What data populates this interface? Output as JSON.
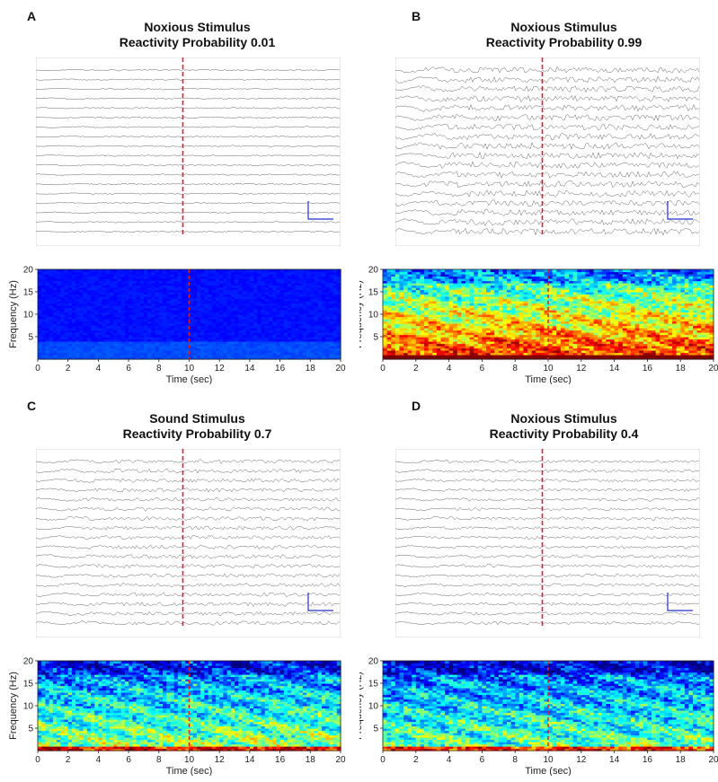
{
  "panels": [
    {
      "letter": "A",
      "title_line1": "Noxious Stimulus",
      "title_line2": "Reactivity Probability 0.01",
      "intensity": 0.05
    },
    {
      "letter": "B",
      "title_line1": "Noxious Stimulus",
      "title_line2": "Reactivity Probability 0.99",
      "intensity": 0.95
    },
    {
      "letter": "C",
      "title_line1": "Sound Stimulus",
      "title_line2": "Reactivity Probability 0.7",
      "intensity": 0.6
    },
    {
      "letter": "D",
      "title_line1": "Noxious Stimulus",
      "title_line2": "Reactivity Probability 0.4",
      "intensity": 0.55
    }
  ],
  "chart_data": [
    {
      "type": "heatmap",
      "panel": "A",
      "xlabel": "Time (sec)",
      "ylabel": "Frequency (Hz)",
      "xlim": [
        0,
        20
      ],
      "ylim": [
        0,
        20
      ],
      "x_ticks": [
        "0",
        "2",
        "4",
        "6",
        "8",
        "10",
        "12",
        "14",
        "16",
        "18",
        "20"
      ],
      "y_ticks": [
        "5",
        "10",
        "15",
        "20"
      ],
      "stimulus_marker_x": 10
    },
    {
      "type": "heatmap",
      "panel": "B",
      "xlabel": "Time (sec)",
      "ylabel": "Frequency (Hz)",
      "xlim": [
        0,
        20
      ],
      "ylim": [
        0,
        20
      ],
      "x_ticks": [
        "0",
        "2",
        "4",
        "6",
        "8",
        "10",
        "12",
        "14",
        "16",
        "18",
        "20"
      ],
      "y_ticks": [
        "5",
        "10",
        "15",
        "20"
      ],
      "stimulus_marker_x": 10
    },
    {
      "type": "heatmap",
      "panel": "C",
      "xlabel": "Time (sec)",
      "ylabel": "Frequency (Hz)",
      "xlim": [
        0,
        20
      ],
      "ylim": [
        0,
        20
      ],
      "x_ticks": [
        "0",
        "2",
        "4",
        "6",
        "8",
        "10",
        "12",
        "14",
        "16",
        "18",
        "20"
      ],
      "y_ticks": [
        "5",
        "10",
        "15",
        "20"
      ],
      "stimulus_marker_x": 10
    },
    {
      "type": "heatmap",
      "panel": "D",
      "xlabel": "Time (sec)",
      "ylabel": "Frequency (Hz)",
      "xlim": [
        0,
        20
      ],
      "ylim": [
        0,
        20
      ],
      "x_ticks": [
        "0",
        "2",
        "4",
        "6",
        "8",
        "10",
        "12",
        "14",
        "16",
        "18",
        "20"
      ],
      "y_ticks": [
        "5",
        "10",
        "15",
        "20"
      ],
      "stimulus_marker_x": 10
    }
  ]
}
